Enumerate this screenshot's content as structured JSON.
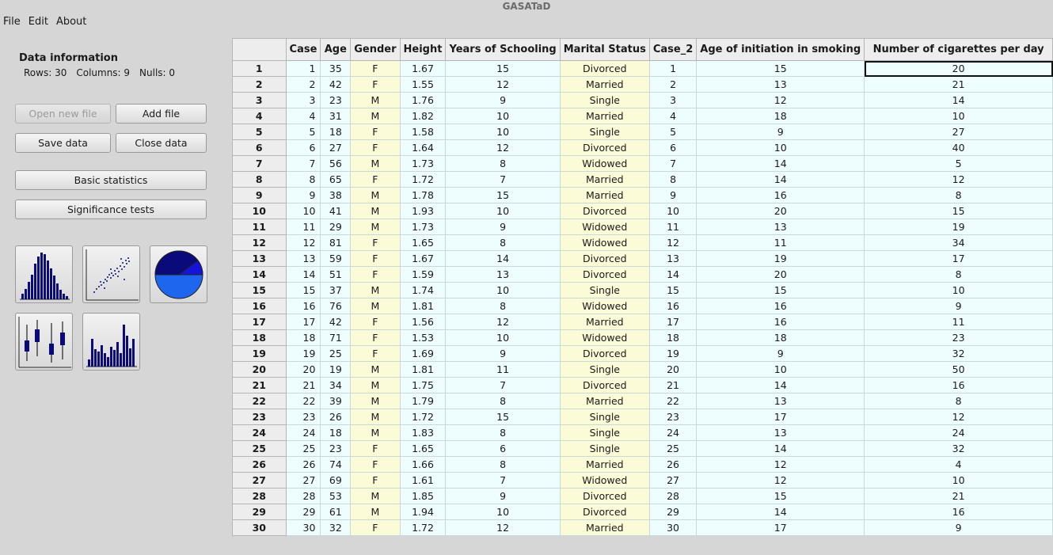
{
  "window": {
    "title": "GASATaD"
  },
  "menu": [
    "File",
    "Edit",
    "About"
  ],
  "info": {
    "title": "Data information",
    "rows": "Rows: 30",
    "columns": "Columns: 9",
    "nulls": "Nulls: 0"
  },
  "buttons": {
    "open_new_file": "Open new file",
    "add_file": "Add file",
    "save_data": "Save data",
    "close_data": "Close data",
    "basic_statistics": "Basic statistics",
    "significance_tests": "Significance tests"
  },
  "table": {
    "columns": [
      "Case",
      "Age",
      "Gender",
      "Height",
      "Years of Schooling",
      "Marital Status",
      "Case_2",
      "Age of initiation in smoking",
      "Number of cigarettes per day"
    ],
    "column_types": [
      "num",
      "num",
      "str",
      "num",
      "num",
      "str",
      "num",
      "num",
      "num"
    ],
    "rows": [
      [
        "1",
        "35",
        "F",
        "1.67",
        "15",
        "Divorced",
        "1",
        "15",
        "20"
      ],
      [
        "2",
        "42",
        "F",
        "1.55",
        "12",
        "Married",
        "2",
        "13",
        "21"
      ],
      [
        "3",
        "23",
        "M",
        "1.76",
        "9",
        "Single",
        "3",
        "12",
        "14"
      ],
      [
        "4",
        "31",
        "M",
        "1.82",
        "10",
        "Married",
        "4",
        "18",
        "10"
      ],
      [
        "5",
        "18",
        "F",
        "1.58",
        "10",
        "Single",
        "5",
        "9",
        "27"
      ],
      [
        "6",
        "27",
        "F",
        "1.64",
        "12",
        "Divorced",
        "6",
        "10",
        "40"
      ],
      [
        "7",
        "56",
        "M",
        "1.73",
        "8",
        "Widowed",
        "7",
        "14",
        "5"
      ],
      [
        "8",
        "65",
        "F",
        "1.72",
        "7",
        "Married",
        "8",
        "14",
        "12"
      ],
      [
        "9",
        "38",
        "M",
        "1.78",
        "15",
        "Married",
        "9",
        "16",
        "8"
      ],
      [
        "10",
        "41",
        "M",
        "1.93",
        "10",
        "Divorced",
        "10",
        "20",
        "15"
      ],
      [
        "11",
        "29",
        "M",
        "1.73",
        "9",
        "Widowed",
        "11",
        "13",
        "19"
      ],
      [
        "12",
        "81",
        "F",
        "1.65",
        "8",
        "Widowed",
        "12",
        "11",
        "34"
      ],
      [
        "13",
        "59",
        "F",
        "1.67",
        "14",
        "Divorced",
        "13",
        "19",
        "17"
      ],
      [
        "14",
        "51",
        "F",
        "1.59",
        "13",
        "Divorced",
        "14",
        "20",
        "8"
      ],
      [
        "15",
        "37",
        "M",
        "1.74",
        "10",
        "Single",
        "15",
        "15",
        "10"
      ],
      [
        "16",
        "76",
        "M",
        "1.81",
        "8",
        "Widowed",
        "16",
        "16",
        "9"
      ],
      [
        "17",
        "42",
        "F",
        "1.56",
        "12",
        "Married",
        "17",
        "16",
        "11"
      ],
      [
        "18",
        "71",
        "F",
        "1.53",
        "10",
        "Widowed",
        "18",
        "18",
        "23"
      ],
      [
        "19",
        "25",
        "F",
        "1.69",
        "9",
        "Divorced",
        "19",
        "9",
        "32"
      ],
      [
        "20",
        "19",
        "M",
        "1.81",
        "11",
        "Single",
        "20",
        "10",
        "50"
      ],
      [
        "21",
        "34",
        "M",
        "1.75",
        "7",
        "Divorced",
        "21",
        "14",
        "16"
      ],
      [
        "22",
        "39",
        "M",
        "1.79",
        "8",
        "Married",
        "22",
        "13",
        "8"
      ],
      [
        "23",
        "26",
        "M",
        "1.72",
        "15",
        "Single",
        "23",
        "17",
        "12"
      ],
      [
        "24",
        "18",
        "M",
        "1.83",
        "8",
        "Single",
        "24",
        "13",
        "24"
      ],
      [
        "25",
        "23",
        "F",
        "1.65",
        "6",
        "Single",
        "25",
        "14",
        "32"
      ],
      [
        "26",
        "74",
        "F",
        "1.66",
        "8",
        "Married",
        "26",
        "12",
        "4"
      ],
      [
        "27",
        "69",
        "F",
        "1.61",
        "7",
        "Widowed",
        "27",
        "12",
        "10"
      ],
      [
        "28",
        "53",
        "M",
        "1.85",
        "9",
        "Divorced",
        "28",
        "15",
        "21"
      ],
      [
        "29",
        "61",
        "M",
        "1.94",
        "10",
        "Divorced",
        "29",
        "14",
        "16"
      ],
      [
        "30",
        "32",
        "F",
        "1.72",
        "12",
        "Married",
        "30",
        "17",
        "9"
      ]
    ]
  },
  "colors": {
    "numeric_cell": "#eefdfd",
    "string_cell": "#fbfbd8",
    "icon_dark_blue": "#0a0a7a",
    "icon_blue": "#1f66ee"
  },
  "chart_tools": [
    "histogram-icon",
    "scatter-plot-icon",
    "pie-chart-icon",
    "box-plot-icon",
    "bar-chart-icon"
  ]
}
